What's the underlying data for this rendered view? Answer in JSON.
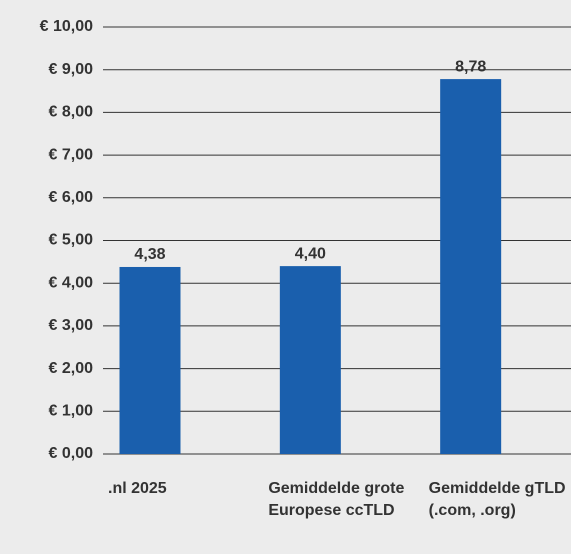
{
  "chart_data": {
    "type": "bar",
    "categories": [
      ".nl 2025",
      "Gemiddelde grote Europese ccTLD",
      "Gemiddelde gTLD (.com, .org)"
    ],
    "values": [
      4.38,
      4.4,
      8.78
    ],
    "value_labels": [
      "4,38",
      "4,40",
      "8,78"
    ],
    "color": "#1a5fad",
    "ylim": [
      0,
      10
    ],
    "yticks": [
      {
        "value": 0,
        "label": "€ 0,00"
      },
      {
        "value": 1,
        "label": "€ 1,00"
      },
      {
        "value": 2,
        "label": "€ 2,00"
      },
      {
        "value": 3,
        "label": "€ 3,00"
      },
      {
        "value": 4,
        "label": "€ 4,00"
      },
      {
        "value": 5,
        "label": "€ 5,00"
      },
      {
        "value": 6,
        "label": "€ 6,00"
      },
      {
        "value": 7,
        "label": "€ 7,00"
      },
      {
        "value": 8,
        "label": "€ 8,00"
      },
      {
        "value": 9,
        "label": "€ 9,00"
      },
      {
        "value": 10,
        "label": "€ 10,00"
      }
    ],
    "grid": true
  }
}
